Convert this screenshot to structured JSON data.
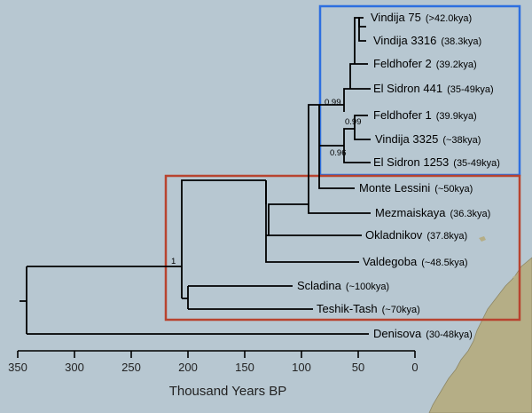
{
  "tree": {
    "tips": [
      {
        "name": "Vindija 75",
        "date": "(>42.0kya)"
      },
      {
        "name": "Vindija 3316",
        "date": "(38.3kya)"
      },
      {
        "name": "Feldhofer  2",
        "date": "(39.2kya)"
      },
      {
        "name": "El Sidron 441",
        "date": "(35-49kya)"
      },
      {
        "name": "Feldhofer  1",
        "date": "(39.9kya)"
      },
      {
        "name": "Vindija 3325",
        "date": "(~38kya)"
      },
      {
        "name": "El Sidron 1253",
        "date": "(35-49kya)"
      },
      {
        "name": "Monte Lessini",
        "date": "(~50kya)"
      },
      {
        "name": "Mezmaiskaya",
        "date": "(36.3kya)"
      },
      {
        "name": "Okladnikov",
        "date": "(37.8kya)"
      },
      {
        "name": "Valdegoba",
        "date": "(~48.5kya)"
      },
      {
        "name": "Scladina",
        "date": "(~100kya)"
      },
      {
        "name": "Teshik-Tash",
        "date": "(~70kya)"
      },
      {
        "name": "Denisova",
        "date": "(30-48kya)"
      }
    ],
    "support_values": [
      "0.99",
      "0.99",
      "0.96",
      "1"
    ],
    "highlight_colors": {
      "blue_box": "#2d6fe0",
      "red_box": "#b8432f"
    }
  },
  "axis": {
    "title": "Thousand Years BP",
    "ticks": [
      "350",
      "300",
      "250",
      "200",
      "150",
      "100",
      "50",
      "0"
    ]
  },
  "colors": {
    "background": "#b7c7d1",
    "land": "#b5ae86",
    "branch": "#000000"
  }
}
